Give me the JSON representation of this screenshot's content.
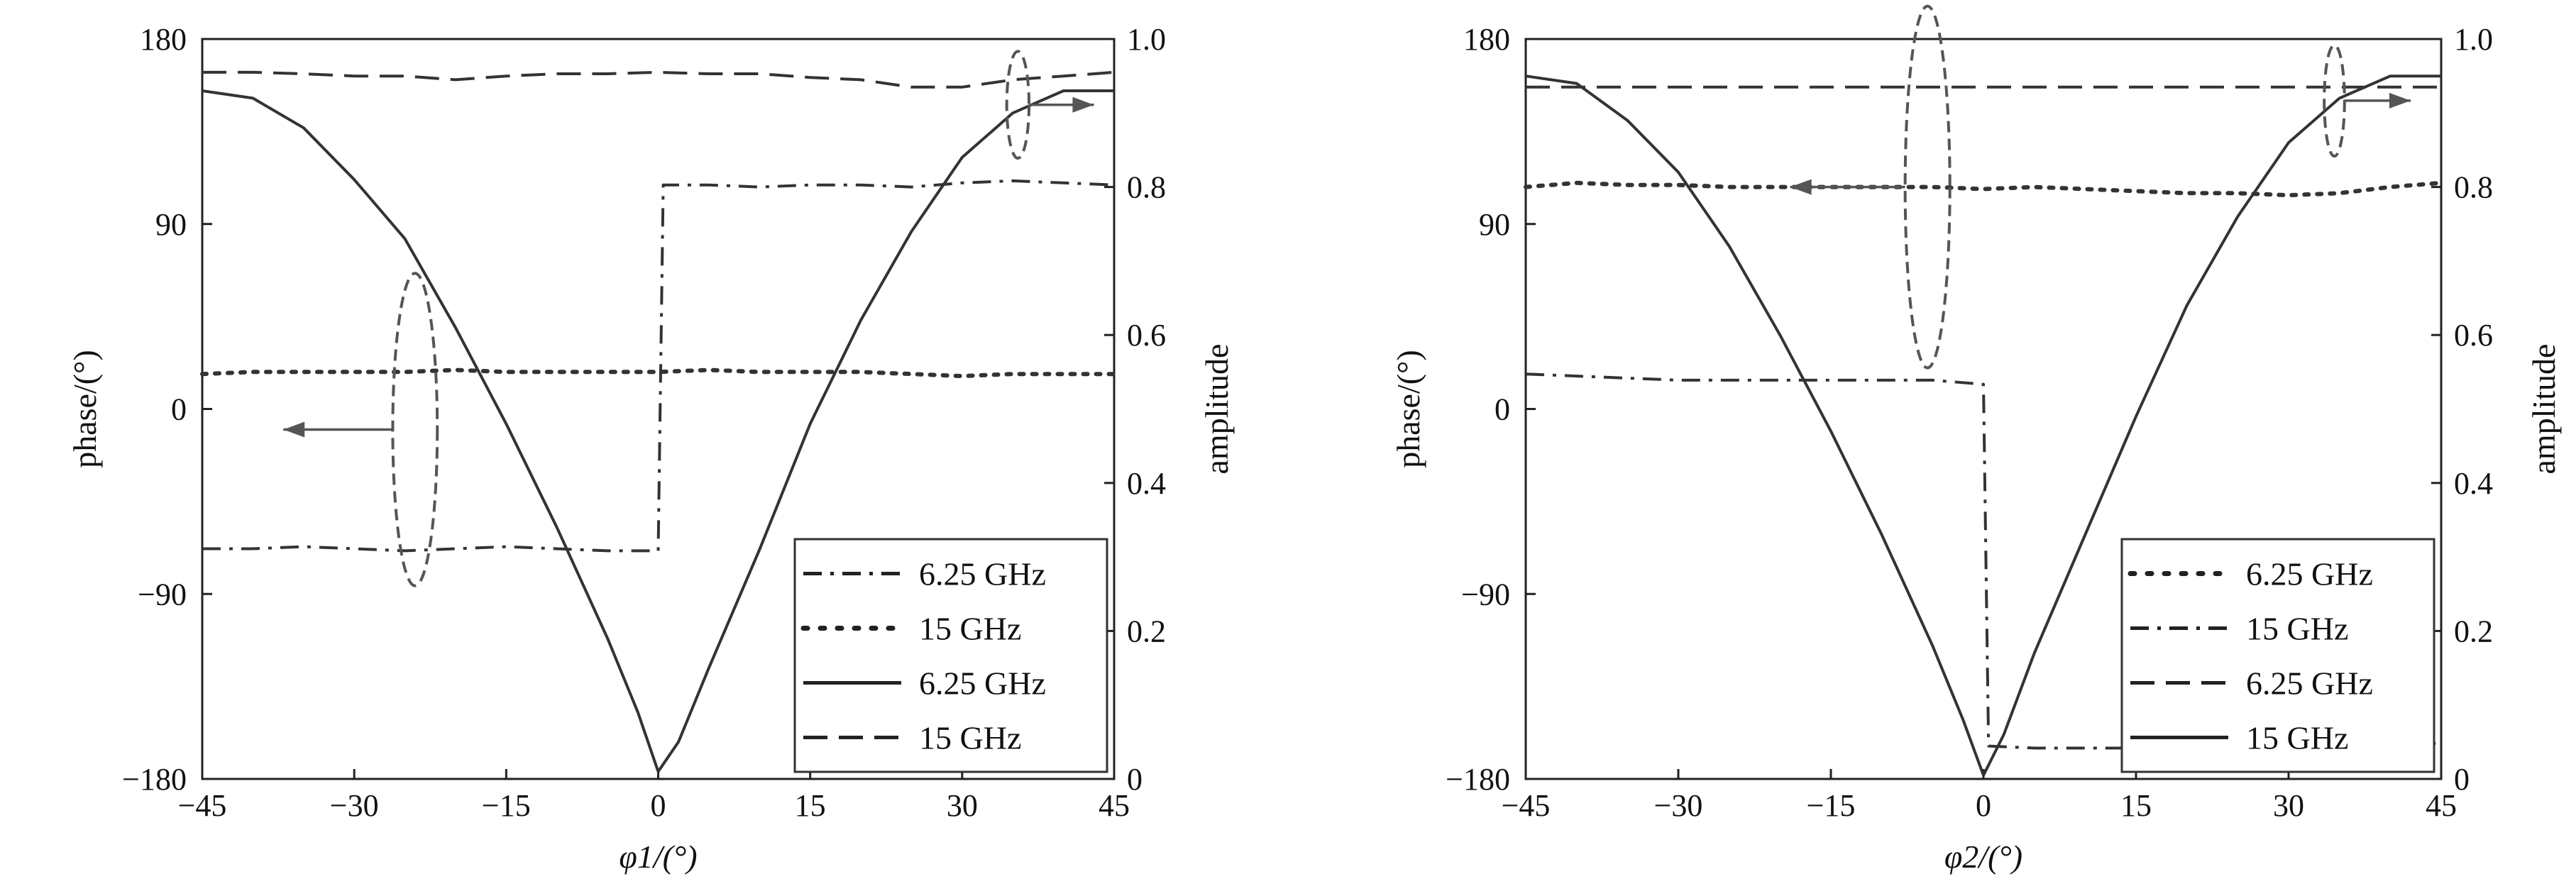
{
  "chart_data": [
    {
      "type": "line",
      "xlabel": "φ1/(°)",
      "ylabel_left": "phase/(°)",
      "ylabel_right": "amplitude",
      "xlim": [
        -45,
        45
      ],
      "ylim_left": [
        -180,
        180
      ],
      "ylim_right": [
        0,
        1.0
      ],
      "xticks": [
        "−45",
        "−30",
        "−15",
        "0",
        "15",
        "30",
        "45"
      ],
      "yticks_left": [
        "−180",
        "−90",
        "0",
        "90",
        "180"
      ],
      "yticks_right": [
        "0",
        "0.2",
        "0.4",
        "0.6",
        "0.8",
        "1.0"
      ],
      "grid": false,
      "legend_position": "bottom-right",
      "series": [
        {
          "name": "6.25 GHz",
          "axis": "left",
          "style": "dashdot",
          "x": [
            -45,
            -40,
            -35,
            -30,
            -25,
            -20,
            -15,
            -10,
            -5,
            0,
            0.5,
            5,
            10,
            15,
            20,
            25,
            30,
            35,
            40,
            45
          ],
          "y": [
            -68,
            -68,
            -67,
            -68,
            -69,
            -68,
            -67,
            -68,
            -69,
            -69,
            109,
            109,
            108,
            109,
            109,
            108,
            110,
            111,
            110,
            109
          ]
        },
        {
          "name": "15 GHz",
          "axis": "left",
          "style": "dotted",
          "x": [
            -45,
            -40,
            -35,
            -30,
            -25,
            -20,
            -15,
            -10,
            -5,
            0,
            5,
            10,
            15,
            20,
            25,
            30,
            35,
            40,
            45
          ],
          "y": [
            17,
            18,
            18,
            18,
            18,
            19,
            18,
            18,
            18,
            18,
            19,
            18,
            18,
            18,
            17,
            16,
            17,
            17,
            17
          ]
        },
        {
          "name": "6.25 GHz",
          "axis": "right",
          "style": "solid",
          "x": [
            -45,
            -40,
            -35,
            -30,
            -25,
            -20,
            -15,
            -10,
            -5,
            -2,
            0,
            2,
            5,
            10,
            15,
            20,
            25,
            30,
            35,
            40,
            45
          ],
          "y": [
            0.93,
            0.92,
            0.88,
            0.81,
            0.73,
            0.61,
            0.48,
            0.34,
            0.19,
            0.09,
            0.01,
            0.05,
            0.15,
            0.31,
            0.48,
            0.62,
            0.74,
            0.84,
            0.9,
            0.93,
            0.93
          ]
        },
        {
          "name": "15 GHz",
          "axis": "right",
          "style": "dashed",
          "x": [
            -45,
            -40,
            -35,
            -30,
            -25,
            -20,
            -15,
            -10,
            -5,
            0,
            5,
            10,
            15,
            20,
            25,
            30,
            35,
            40,
            45
          ],
          "y": [
            0.955,
            0.955,
            0.953,
            0.95,
            0.95,
            0.945,
            0.95,
            0.953,
            0.953,
            0.955,
            0.953,
            0.953,
            0.948,
            0.945,
            0.935,
            0.935,
            0.945,
            0.95,
            0.955
          ]
        }
      ],
      "annotations": [
        {
          "type": "ellipse-arrow",
          "points_to": "left",
          "x": -24,
          "y": -10,
          "x_half_width": 2.2,
          "y_half_height": 76,
          "arrow_to_x": -37
        },
        {
          "type": "ellipse-arrow",
          "points_to": "right",
          "x": 35.5,
          "y": 148,
          "x_half_width": 1.1,
          "y_half_height": 26,
          "arrow_to_x": 43
        }
      ]
    },
    {
      "type": "line",
      "xlabel": "φ2/(°)",
      "ylabel_left": "phase/(°)",
      "ylabel_right": "amplitude",
      "xlim": [
        -45,
        45
      ],
      "ylim_left": [
        -180,
        180
      ],
      "ylim_right": [
        0,
        1.0
      ],
      "xticks": [
        "−45",
        "−30",
        "−15",
        "0",
        "15",
        "30",
        "45"
      ],
      "yticks_left": [
        "−180",
        "−90",
        "0",
        "90",
        "180"
      ],
      "yticks_right": [
        "0",
        "0.2",
        "0.4",
        "0.6",
        "0.8",
        "1.0"
      ],
      "grid": false,
      "legend_position": "bottom-right",
      "series": [
        {
          "name": "6.25 GHz",
          "axis": "left",
          "style": "dotted",
          "x": [
            -45,
            -40,
            -35,
            -30,
            -25,
            -20,
            -15,
            -10,
            -5,
            0,
            5,
            10,
            15,
            20,
            25,
            30,
            35,
            40,
            45
          ],
          "y": [
            108,
            110,
            109,
            109,
            108,
            108,
            108,
            108,
            108,
            107,
            108,
            107,
            106,
            105,
            105,
            104,
            105,
            108,
            110
          ]
        },
        {
          "name": "15 GHz",
          "axis": "left",
          "style": "dashdot",
          "x": [
            -45,
            -40,
            -35,
            -30,
            -25,
            -20,
            -15,
            -10,
            -5,
            0,
            0.5,
            5,
            10,
            15,
            20,
            25,
            30,
            35,
            40,
            45
          ],
          "y": [
            17,
            16,
            15,
            14,
            14,
            14,
            14,
            14,
            14,
            12,
            -164,
            -165,
            -165,
            -165,
            -164,
            -164,
            -163,
            -163,
            -161,
            -163
          ]
        },
        {
          "name": "6.25 GHz",
          "axis": "right",
          "style": "dashed",
          "x": [
            -45,
            -40,
            -35,
            -30,
            -25,
            -20,
            -15,
            -10,
            -5,
            0,
            5,
            10,
            15,
            20,
            25,
            30,
            35,
            40,
            45
          ],
          "y": [
            0.935,
            0.935,
            0.935,
            0.935,
            0.935,
            0.935,
            0.935,
            0.935,
            0.935,
            0.935,
            0.935,
            0.935,
            0.935,
            0.935,
            0.935,
            0.935,
            0.935,
            0.935,
            0.935
          ]
        },
        {
          "name": "15 GHz",
          "axis": "right",
          "style": "solid",
          "x": [
            -45,
            -40,
            -35,
            -30,
            -25,
            -20,
            -15,
            -10,
            -5,
            -2,
            0,
            2,
            5,
            10,
            15,
            20,
            25,
            30,
            35,
            40,
            45
          ],
          "y": [
            0.95,
            0.94,
            0.89,
            0.82,
            0.72,
            0.6,
            0.47,
            0.33,
            0.18,
            0.08,
            0.005,
            0.06,
            0.17,
            0.33,
            0.49,
            0.64,
            0.76,
            0.86,
            0.92,
            0.95,
            0.95
          ]
        }
      ],
      "annotations": [
        {
          "type": "ellipse-arrow",
          "points_to": "left",
          "x": -5.5,
          "y": 108,
          "x_half_width": 2.2,
          "y_half_height": 88,
          "arrow_to_x": -19
        },
        {
          "type": "ellipse-arrow",
          "points_to": "right",
          "x": 34.5,
          "y": 150,
          "x_half_width": 1.0,
          "y_half_height": 27,
          "arrow_to_x": 42
        }
      ]
    }
  ]
}
